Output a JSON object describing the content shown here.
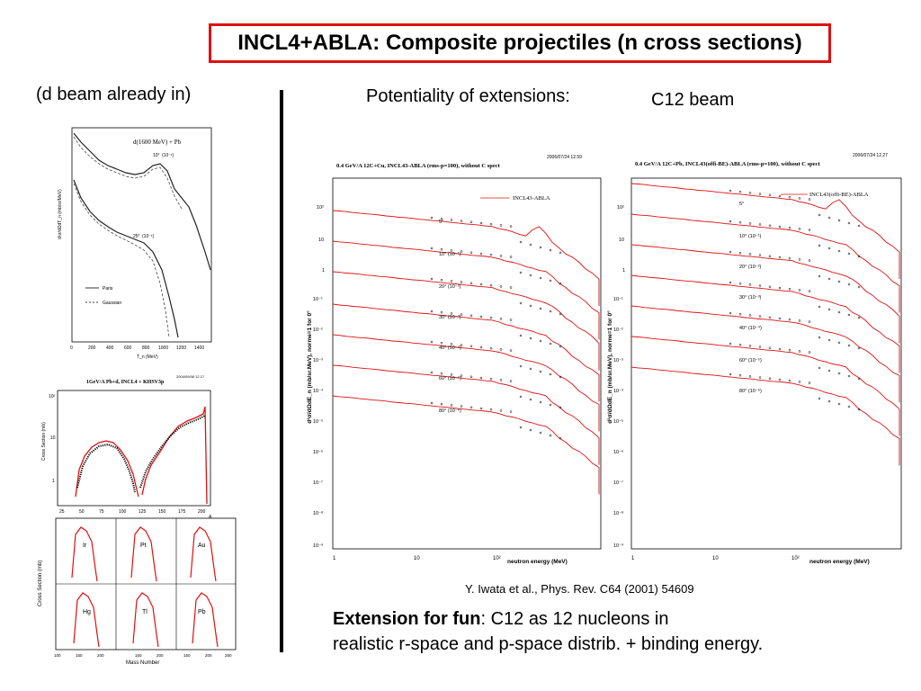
{
  "title": "INCL4+ABLA: Composite projectiles (n cross sections)",
  "left_caption": "(d beam already in)",
  "potentiality": "Potentiality of extensions:",
  "c12_beam": "C12 beam",
  "reference": "Y. Iwata et al., Phys. Rev. C64 (2001) 54609",
  "extension_bold": "Extension for fun",
  "extension_rest": ": C12 as 12 nucleons in",
  "extension_line2": "realistic r-space and p-space distrib. + binding energy.",
  "fig_a": {
    "label": "d(1600 MeV) + Pb",
    "angle1": "10°",
    "angle1_scale": "(10⁻¹)",
    "angle2": "25°",
    "angle2_scale": "(10⁻¹)",
    "xlabel": "T_n (MeV)",
    "ylabel": "d²σ/dΩdT_n (mb/sr/MeV)",
    "legend": [
      "Paris",
      "Gaussian"
    ],
    "xticks": [
      "0",
      "200",
      "400",
      "600",
      "800",
      "1000",
      "1200",
      "1400"
    ]
  },
  "fig_b": {
    "title": "1GeV/A Pb+d, INCL4 + KHSV3p",
    "stamp": "2004/09/08   12.17",
    "ylabel": "Cross Section (mb)",
    "xticks": [
      "25",
      "50",
      "75",
      "100",
      "125",
      "150",
      "175",
      "200"
    ],
    "xunit": "A",
    "yticks": [
      "10²",
      "10",
      "1"
    ]
  },
  "fig_c": {
    "ylabel": "Cross Section (mb)",
    "xlabel": "Mass Number",
    "panels": [
      "Ir",
      "Pt",
      "Au",
      "Hg",
      "Tl",
      "Pb"
    ],
    "xticks": [
      "100",
      "150",
      "200",
      "150",
      "200",
      "150",
      "200",
      "250"
    ]
  },
  "fig_cu": {
    "stamp": "2006/07/24   12.59",
    "title": "0.4 GeV/A 12C+Cu, INCL43-ABLA (rms-p=100), without C spect",
    "legend": "INCL43-ABLA",
    "ylabel": "d²σ/dΩdE_n (mb/sr.MeV), norme=1 for 0°",
    "xlabel": "neutron energy (MeV)",
    "xticks": [
      "1",
      "10",
      "10²"
    ],
    "yticks": [
      "10²",
      "10",
      "1",
      "10⁻¹",
      "10⁻²",
      "10⁻³",
      "10⁻⁴",
      "10⁻⁵",
      "10⁻⁶",
      "10⁻⁷",
      "10⁻⁸",
      "10⁻⁹"
    ],
    "angles": [
      "5°",
      "10° (10⁻¹)",
      "20° (10⁻²)",
      "30° (10⁻³)",
      "40° (10⁻⁴)",
      "60° (10⁻⁵)",
      "80° (10⁻⁶)"
    ]
  },
  "fig_pb": {
    "stamp": "2006/07/24   12.27",
    "title": "0.4 GeV/A 12C+Pb, INCL43(offi-BE)-ABLA (rms-p=100), without C spect",
    "legend": "INCL43(offi-BE)-ABLA",
    "ylabel": "d²σ/dΩdE_n (mb/sr.MeV), norme=1 for 0°",
    "xlabel": "neutron energy (MeV)",
    "xticks": [
      "1",
      "10",
      "10²"
    ],
    "yticks": [
      "10²",
      "10",
      "1",
      "10⁻¹",
      "10⁻²",
      "10⁻³",
      "10⁻⁴",
      "10⁻⁵",
      "10⁻⁶",
      "10⁻⁷",
      "10⁻⁸",
      "10⁻⁹"
    ],
    "angles": [
      "5°",
      "10° (10⁻¹)",
      "20° (10⁻²)",
      "30° (10⁻³)",
      "40° (10⁻⁴)",
      "60° (10⁻⁵)",
      "80° (10⁻⁶)"
    ]
  },
  "colors": {
    "title_border": "#e01010",
    "model": "#e01010"
  }
}
